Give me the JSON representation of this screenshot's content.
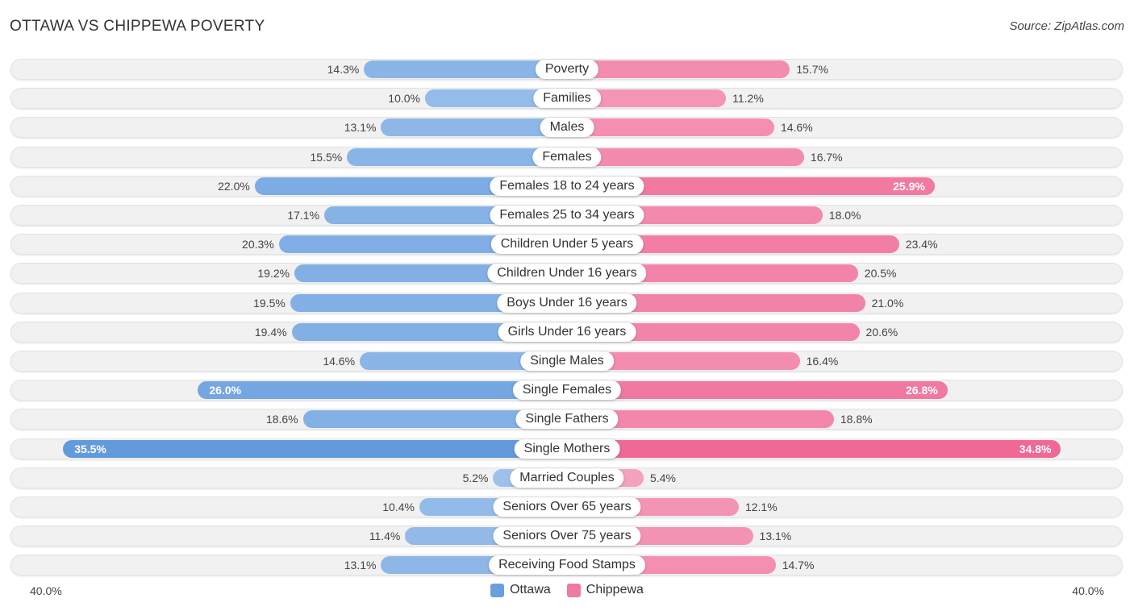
{
  "title": "OTTAWA VS CHIPPEWA POVERTY",
  "source": "Source: ZipAtlas.com",
  "colors": {
    "ottawa": "#6a9fdd",
    "chippewa": "#f07aa1"
  },
  "chart_data": {
    "type": "bar",
    "orientation": "horizontal-diverging",
    "title": "OTTAWA VS CHIPPEWA POVERTY",
    "categories": [
      "Poverty",
      "Families",
      "Males",
      "Females",
      "Females 18 to 24 years",
      "Females 25 to 34 years",
      "Children Under 5 years",
      "Children Under 16 years",
      "Boys Under 16 years",
      "Girls Under 16 years",
      "Single Males",
      "Single Females",
      "Single Fathers",
      "Single Mothers",
      "Married Couples",
      "Seniors Over 65 years",
      "Seniors Over 75 years",
      "Receiving Food Stamps"
    ],
    "series": [
      {
        "name": "Ottawa",
        "side": "left",
        "values": [
          14.3,
          10.0,
          13.1,
          15.5,
          22.0,
          17.1,
          20.3,
          19.2,
          19.5,
          19.4,
          14.6,
          26.0,
          18.6,
          35.5,
          5.2,
          10.4,
          11.4,
          13.1
        ],
        "labels": [
          "14.3%",
          "10.0%",
          "13.1%",
          "15.5%",
          "22.0%",
          "17.1%",
          "20.3%",
          "19.2%",
          "19.5%",
          "19.4%",
          "14.6%",
          "26.0%",
          "18.6%",
          "35.5%",
          "5.2%",
          "10.4%",
          "11.4%",
          "13.1%"
        ]
      },
      {
        "name": "Chippewa",
        "side": "right",
        "values": [
          15.7,
          11.2,
          14.6,
          16.7,
          25.9,
          18.0,
          23.4,
          20.5,
          21.0,
          20.6,
          16.4,
          26.8,
          18.8,
          34.8,
          5.4,
          12.1,
          13.1,
          14.7
        ],
        "labels": [
          "15.7%",
          "11.2%",
          "14.6%",
          "16.7%",
          "25.9%",
          "18.0%",
          "23.4%",
          "20.5%",
          "21.0%",
          "20.6%",
          "16.4%",
          "26.8%",
          "18.8%",
          "34.8%",
          "5.4%",
          "12.1%",
          "13.1%",
          "14.7%"
        ]
      }
    ],
    "xlim": [
      -40,
      40
    ],
    "axis_labels": {
      "left": "40.0%",
      "right": "40.0%"
    },
    "legend": [
      "Ottawa",
      "Chippewa"
    ],
    "legend_position": "bottom-center"
  }
}
